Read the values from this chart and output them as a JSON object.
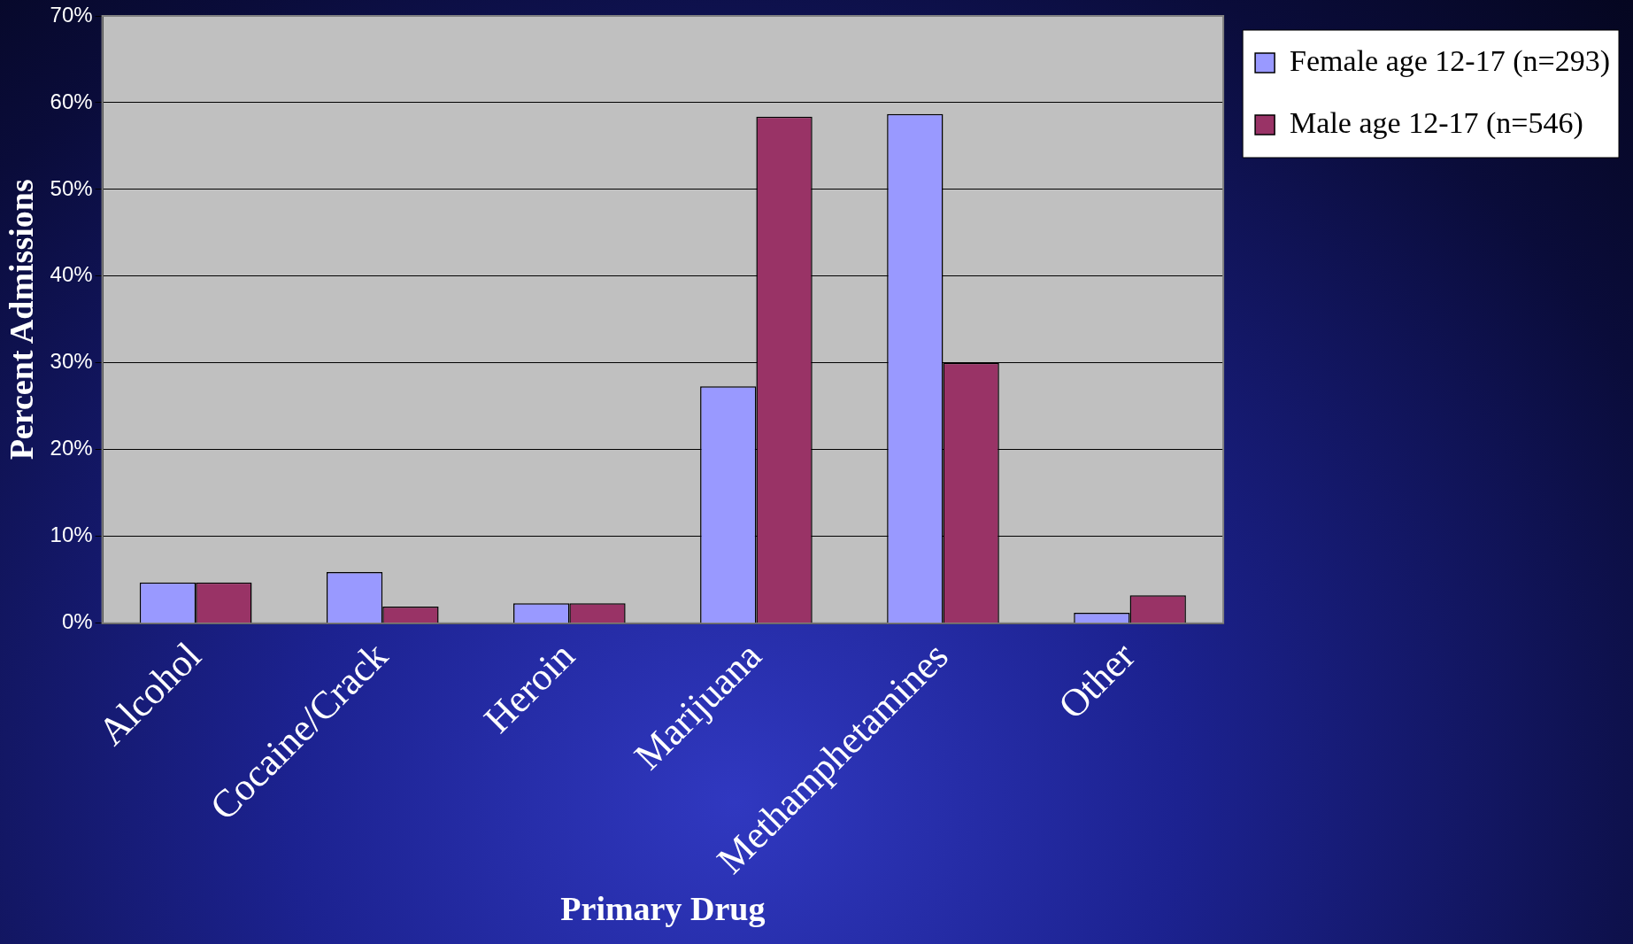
{
  "chart_data": {
    "type": "bar",
    "xlabel": "Primary Drug",
    "ylabel": "Percent Admissions",
    "categories": [
      "Alcohol",
      "Cocaine/Crack",
      "Heroin",
      "Marijuana",
      "Methamphetamines",
      "Other"
    ],
    "series": [
      {
        "name": "Female age 12-17 (n=293)",
        "color": "#9999ff",
        "values": [
          4.7,
          5.9,
          2.3,
          27.3,
          58.7,
          1.2
        ]
      },
      {
        "name": "Male age 12-17 (n=546)",
        "color": "#993366",
        "values": [
          4.7,
          1.9,
          2.3,
          58.4,
          30.0,
          3.2
        ]
      }
    ],
    "ylim": [
      0,
      70
    ],
    "yticks": [
      {
        "value": 0,
        "label": "0%"
      },
      {
        "value": 10,
        "label": "10%"
      },
      {
        "value": 20,
        "label": "20%"
      },
      {
        "value": 30,
        "label": "30%"
      },
      {
        "value": 40,
        "label": "40%"
      },
      {
        "value": 50,
        "label": "50%"
      },
      {
        "value": 60,
        "label": "60%"
      },
      {
        "value": 70,
        "label": "70%"
      }
    ],
    "grid": "y",
    "legend": "top right"
  }
}
